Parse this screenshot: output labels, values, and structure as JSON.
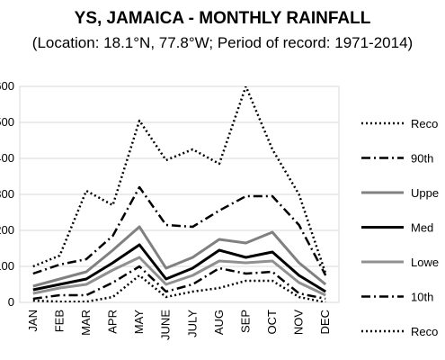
{
  "chart_data": {
    "type": "line",
    "title": "YS, JAMAICA - MONTHLY RAINFALL",
    "subtitle": "(Location: 18.1°N, 77.8°W; Period of record: 1971-2014)",
    "categories": [
      "JAN",
      "FEB",
      "MAR",
      "APR",
      "MAY",
      "JUNE",
      "JULY",
      "AUG",
      "SEP",
      "OCT",
      "NOV",
      "DEC"
    ],
    "ylim": [
      0,
      600
    ],
    "grid": true,
    "legend_position": "right",
    "series": [
      {
        "name": "Reco",
        "color": "#000000",
        "style": "dotted",
        "values": [
          100,
          130,
          310,
          270,
          505,
          395,
          425,
          385,
          695,
          425,
          300,
          80
        ]
      },
      {
        "name": "90th",
        "color": "#000000",
        "style": "dashdot",
        "values": [
          80,
          105,
          120,
          185,
          320,
          215,
          210,
          255,
          295,
          295,
          215,
          75
        ]
      },
      {
        "name": "Uppe",
        "color": "#808080",
        "style": "solid",
        "values": [
          45,
          65,
          85,
          145,
          210,
          95,
          125,
          175,
          165,
          195,
          110,
          50
        ]
      },
      {
        "name": "Med",
        "color": "#000000",
        "style": "solid",
        "values": [
          35,
          50,
          65,
          110,
          160,
          65,
          95,
          145,
          125,
          140,
          75,
          30
        ]
      },
      {
        "name": "Lowe",
        "color": "#909090",
        "style": "solid",
        "values": [
          25,
          40,
          50,
          90,
          125,
          50,
          75,
          115,
          110,
          115,
          55,
          20
        ]
      },
      {
        "name": "10th",
        "color": "#000000",
        "style": "dashdot",
        "values": [
          10,
          20,
          20,
          55,
          100,
          30,
          50,
          95,
          80,
          85,
          25,
          10
        ]
      },
      {
        "name": "Reco",
        "color": "#000000",
        "style": "dotted",
        "values": [
          5,
          2,
          2,
          15,
          75,
          15,
          30,
          40,
          60,
          60,
          15,
          0
        ]
      }
    ]
  }
}
